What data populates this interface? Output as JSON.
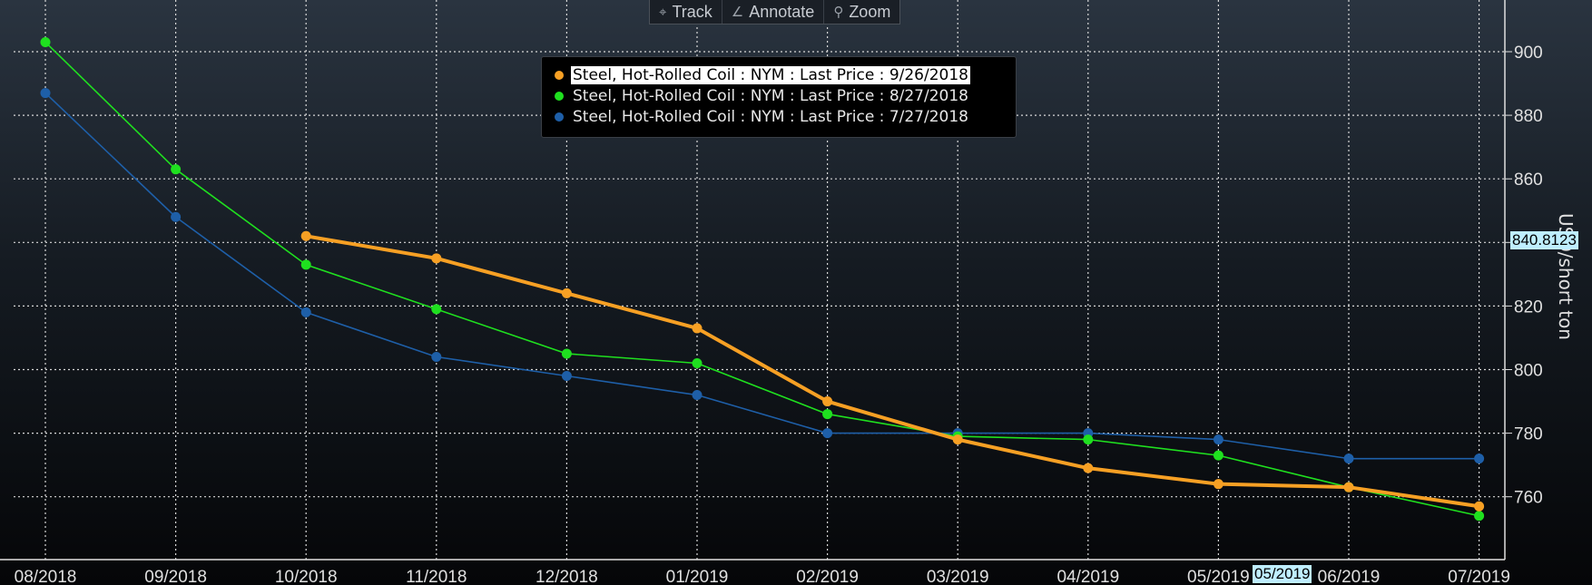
{
  "toolbar": {
    "track_label": "Track",
    "annotate_label": "Annotate",
    "zoom_label": "Zoom"
  },
  "legend": [
    {
      "label": "Steel, Hot-Rolled Coil : NYM : Last Price : 9/26/2018",
      "color": "#f7a024"
    },
    {
      "label": "Steel, Hot-Rolled Coil : NYM : Last Price : 8/27/2018",
      "color": "#1fe01f"
    },
    {
      "label": "Steel, Hot-Rolled Coil : NYM : Last Price : 7/27/2018",
      "color": "#1e5fa8"
    }
  ],
  "markers": {
    "y_value_label": "840.8123",
    "x_value_label": "05/2019"
  },
  "chart_data": {
    "type": "line",
    "x": [
      "08/2018",
      "09/2018",
      "10/2018",
      "11/2018",
      "12/2018",
      "01/2019",
      "02/2019",
      "03/2019",
      "04/2019",
      "05/2019",
      "06/2019",
      "07/2019"
    ],
    "ylabel": "USD/short ton",
    "ylim": [
      740,
      915
    ],
    "yticks": [
      760,
      780,
      800,
      820,
      840,
      860,
      880,
      900
    ],
    "grid": true,
    "legend_position": "top-center",
    "series": [
      {
        "name": "Steel, Hot-Rolled Coil : NYM : Last Price : 9/26/2018",
        "color": "#f7a024",
        "values": [
          null,
          null,
          842,
          835,
          824,
          813,
          790,
          778,
          769,
          764,
          763,
          757
        ]
      },
      {
        "name": "Steel, Hot-Rolled Coil : NYM : Last Price : 8/27/2018",
        "color": "#1fe01f",
        "values": [
          903,
          863,
          833,
          819,
          805,
          802,
          786,
          779,
          778,
          773,
          763,
          754
        ]
      },
      {
        "name": "Steel, Hot-Rolled Coil : NYM : Last Price : 7/27/2018",
        "color": "#1e5fa8",
        "values": [
          887,
          848,
          818,
          804,
          798,
          792,
          780,
          780,
          780,
          778,
          772,
          772
        ]
      }
    ]
  }
}
